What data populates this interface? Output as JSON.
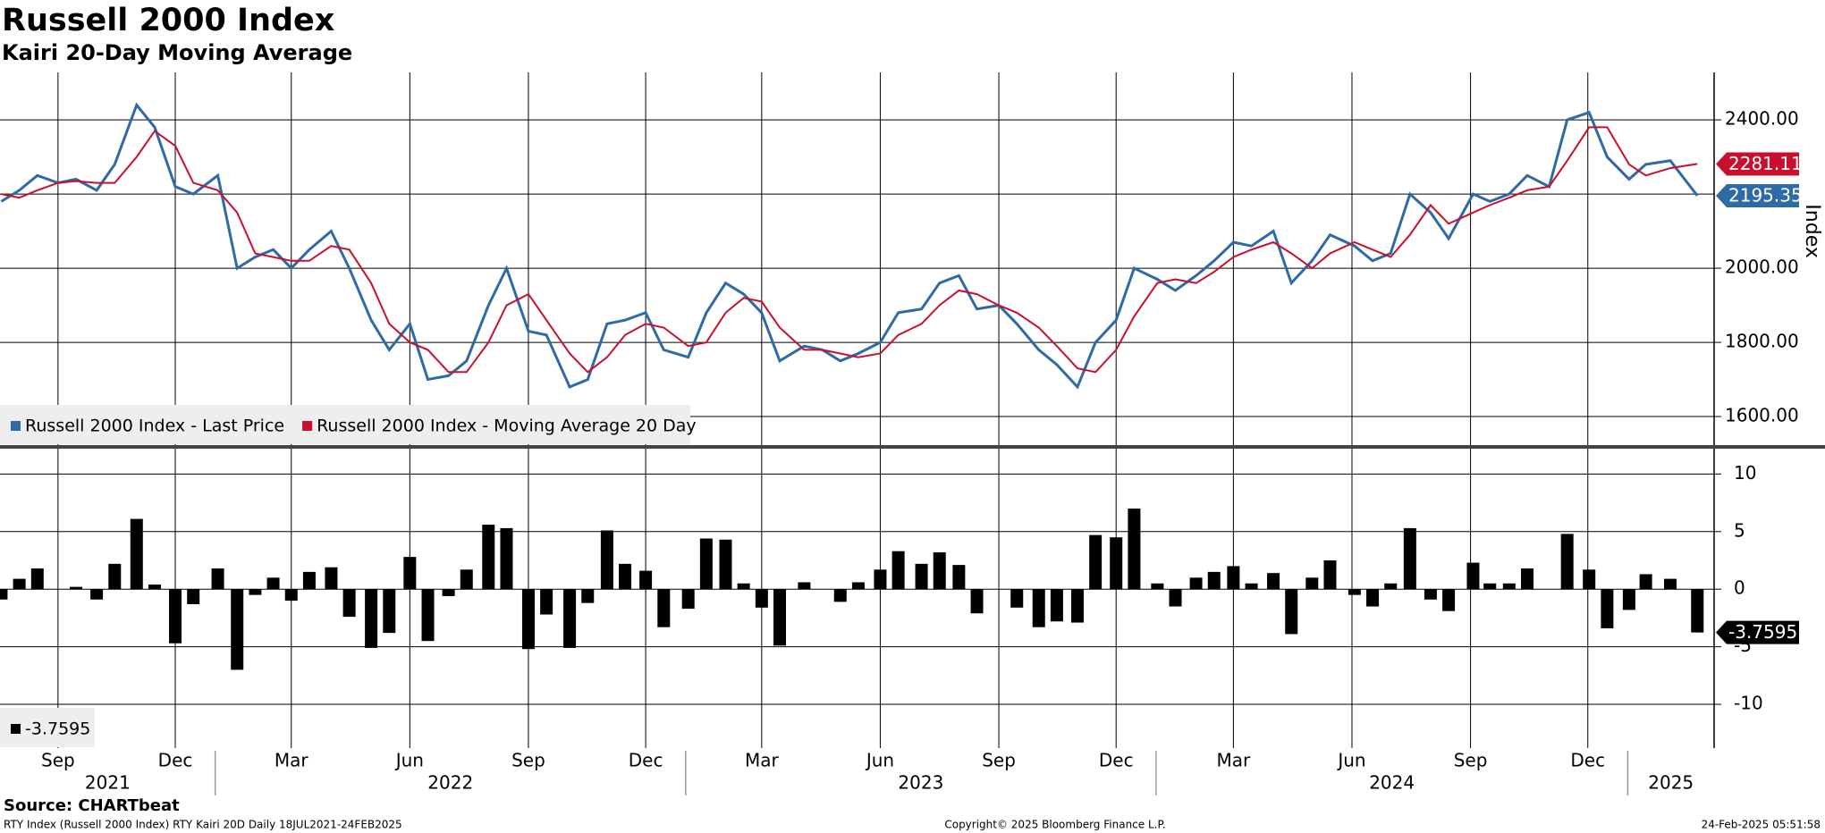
{
  "title": "Russell 2000 Index",
  "subtitle": "Kairi 20-Day Moving Average",
  "source": "Source: CHARTbeat",
  "footer_left": "RTY Index (Russell 2000 Index) RTY Kairi 20D  Daily 18JUL2021-24FEB2025",
  "footer_center": "Copyright© 2025 Bloomberg Finance L.P.",
  "footer_right": "24-Feb-2025 05:51:58",
  "chart_data": [
    {
      "type": "line",
      "y_label": "Index",
      "x": [
        "2021-07-19",
        "2021-08-02",
        "2021-08-16",
        "2021-09-01",
        "2021-09-15",
        "2021-10-01",
        "2021-10-15",
        "2021-11-01",
        "2021-11-15",
        "2021-12-01",
        "2021-12-15",
        "2022-01-03",
        "2022-01-18",
        "2022-02-01",
        "2022-02-15",
        "2022-03-01",
        "2022-03-15",
        "2022-04-01",
        "2022-04-15",
        "2022-05-02",
        "2022-05-16",
        "2022-06-01",
        "2022-06-15",
        "2022-07-01",
        "2022-07-15",
        "2022-08-01",
        "2022-08-15",
        "2022-09-01",
        "2022-09-15",
        "2022-10-03",
        "2022-10-17",
        "2022-11-01",
        "2022-11-15",
        "2022-12-01",
        "2022-12-15",
        "2023-01-03",
        "2023-01-17",
        "2023-02-01",
        "2023-02-15",
        "2023-03-01",
        "2023-03-15",
        "2023-04-03",
        "2023-04-17",
        "2023-05-01",
        "2023-05-15",
        "2023-06-01",
        "2023-06-15",
        "2023-07-03",
        "2023-07-17",
        "2023-08-01",
        "2023-08-15",
        "2023-09-01",
        "2023-09-15",
        "2023-10-02",
        "2023-10-16",
        "2023-11-01",
        "2023-11-15",
        "2023-12-01",
        "2023-12-15",
        "2024-01-02",
        "2024-01-16",
        "2024-02-01",
        "2024-02-15",
        "2024-03-01",
        "2024-03-15",
        "2024-04-01",
        "2024-04-15",
        "2024-05-01",
        "2024-05-15",
        "2024-06-03",
        "2024-06-17",
        "2024-07-01",
        "2024-07-16",
        "2024-08-01",
        "2024-08-15",
        "2024-09-03",
        "2024-09-16",
        "2024-10-01",
        "2024-10-15",
        "2024-11-01",
        "2024-11-15",
        "2024-12-02",
        "2024-12-16",
        "2025-01-02",
        "2025-01-15",
        "2025-02-03",
        "2025-02-24"
      ],
      "series": [
        {
          "name": "Russell 2000 Index - Last Price",
          "color": "#2e6aa6",
          "values": [
            2180,
            2210,
            2250,
            2230,
            2240,
            2210,
            2280,
            2440,
            2380,
            2220,
            2200,
            2250,
            2000,
            2030,
            2050,
            2000,
            2050,
            2100,
            2000,
            1860,
            1780,
            1850,
            1700,
            1710,
            1750,
            1900,
            2000,
            1830,
            1820,
            1680,
            1700,
            1850,
            1860,
            1880,
            1780,
            1760,
            1880,
            1960,
            1930,
            1880,
            1750,
            1790,
            1780,
            1750,
            1770,
            1800,
            1880,
            1890,
            1960,
            1980,
            1890,
            1900,
            1850,
            1780,
            1740,
            1680,
            1800,
            1860,
            2000,
            1970,
            1940,
            1980,
            2020,
            2070,
            2060,
            2100,
            1960,
            2020,
            2090,
            2060,
            2020,
            2040,
            2200,
            2150,
            2080,
            2200,
            2180,
            2200,
            2250,
            2220,
            2400,
            2420,
            2300,
            2240,
            2280,
            2290,
            2195.35
          ]
        },
        {
          "name": "Russell 2000 Index - Moving Average 20 Day",
          "color": "#c8102e",
          "values": [
            2200,
            2190,
            2210,
            2230,
            2235,
            2230,
            2230,
            2300,
            2370,
            2330,
            2230,
            2210,
            2150,
            2040,
            2030,
            2020,
            2020,
            2060,
            2050,
            1960,
            1850,
            1800,
            1780,
            1720,
            1720,
            1800,
            1900,
            1930,
            1860,
            1770,
            1720,
            1760,
            1820,
            1850,
            1840,
            1790,
            1800,
            1880,
            1920,
            1910,
            1840,
            1780,
            1780,
            1770,
            1760,
            1770,
            1820,
            1850,
            1900,
            1940,
            1930,
            1900,
            1880,
            1840,
            1790,
            1730,
            1720,
            1780,
            1870,
            1960,
            1970,
            1960,
            1990,
            2030,
            2050,
            2070,
            2040,
            2000,
            2040,
            2070,
            2050,
            2030,
            2090,
            2170,
            2120,
            2150,
            2170,
            2190,
            2210,
            2220,
            2290,
            2380,
            2380,
            2280,
            2250,
            2270,
            2281.11
          ]
        }
      ],
      "ylim": [
        1523,
        2528
      ],
      "yticks": [
        {
          "value": 1600,
          "label": "1600.00"
        },
        {
          "value": 1800,
          "label": "1800.00"
        },
        {
          "value": 2000,
          "label": "2000.00"
        },
        {
          "value": 2400,
          "label": "2400.00"
        }
      ],
      "ygrid": [
        1600,
        1800,
        2000,
        2200,
        2400
      ],
      "xlim": [
        "2021-07-18",
        "2025-03-09"
      ]
    },
    {
      "type": "bar",
      "color": "#000000",
      "values": [
        -0.9,
        0.9,
        1.8,
        0.0,
        0.2,
        -0.9,
        2.2,
        6.1,
        0.4,
        -4.7,
        -1.3,
        1.8,
        -7.0,
        -0.5,
        1.0,
        -1.0,
        1.5,
        1.9,
        -2.4,
        -5.1,
        -3.8,
        2.8,
        -4.5,
        -0.6,
        1.7,
        5.6,
        5.3,
        -5.2,
        -2.2,
        -5.1,
        -1.2,
        5.1,
        2.2,
        1.6,
        -3.3,
        -1.7,
        4.4,
        4.3,
        0.5,
        -1.6,
        -4.9,
        0.6,
        0.0,
        -1.1,
        0.6,
        1.7,
        3.3,
        2.2,
        3.2,
        2.1,
        -2.1,
        0.0,
        -1.6,
        -3.3,
        -2.8,
        -2.9,
        4.7,
        4.5,
        7.0,
        0.5,
        -1.5,
        1.0,
        1.5,
        2.0,
        0.5,
        1.4,
        -3.9,
        1.0,
        2.5,
        -0.5,
        -1.5,
        0.5,
        5.3,
        -0.9,
        -1.9,
        2.3,
        0.5,
        0.5,
        1.8,
        0.0,
        4.8,
        1.7,
        -3.4,
        -1.8,
        1.3,
        0.9,
        -3.7595
      ],
      "ylim": [
        -13.8,
        12.2
      ],
      "yticks": [
        10,
        5,
        0,
        -5,
        -10
      ],
      "xlim": [
        "2021-07-18",
        "2025-03-09"
      ],
      "xticks": [
        {
          "value": "2021-09-01",
          "label": "Sep"
        },
        {
          "value": "2021-12-01",
          "label": "Dec"
        },
        {
          "value": "2022-03-01",
          "label": "Mar"
        },
        {
          "value": "2022-06-01",
          "label": "Jun"
        },
        {
          "value": "2022-09-01",
          "label": "Sep"
        },
        {
          "value": "2022-12-01",
          "label": "Dec"
        },
        {
          "value": "2023-03-01",
          "label": "Mar"
        },
        {
          "value": "2023-06-01",
          "label": "Jun"
        },
        {
          "value": "2023-09-01",
          "label": "Sep"
        },
        {
          "value": "2023-12-01",
          "label": "Dec"
        },
        {
          "value": "2024-03-01",
          "label": "Mar"
        },
        {
          "value": "2024-06-01",
          "label": "Jun"
        },
        {
          "value": "2024-09-01",
          "label": "Sep"
        },
        {
          "value": "2024-12-01",
          "label": "Dec"
        }
      ],
      "years": [
        {
          "value": "2021-01-01",
          "label": "2021"
        },
        {
          "value": "2022-01-01",
          "label": "2022"
        },
        {
          "value": "2023-01-01",
          "label": "2023"
        },
        {
          "value": "2024-01-01",
          "label": "2024"
        },
        {
          "value": "2025-01-01",
          "label": "2025"
        }
      ]
    }
  ]
}
